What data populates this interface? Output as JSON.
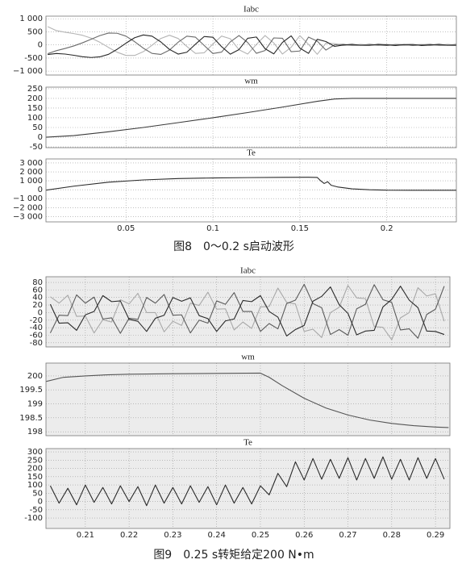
{
  "chart_data": [
    {
      "type": "line",
      "title": "Iabc",
      "background": "#ffffff",
      "grid": true,
      "xlim": [
        0.004,
        0.24
      ],
      "ylim": [
        -1150,
        1100
      ],
      "yticks": [
        {
          "value": 1000,
          "label": "1 000"
        },
        500,
        0,
        -500,
        {
          "value": -1000,
          "label": "−1 000"
        }
      ],
      "x": [
        0.005,
        0.01,
        0.015,
        0.02,
        0.025,
        0.03,
        0.035,
        0.04,
        0.045,
        0.05,
        0.055,
        0.06,
        0.065,
        0.07,
        0.075,
        0.08,
        0.085,
        0.09,
        0.095,
        0.1,
        0.105,
        0.11,
        0.115,
        0.12,
        0.125,
        0.13,
        0.135,
        0.14,
        0.145,
        0.15,
        0.155,
        0.16,
        0.165,
        0.17,
        0.175,
        0.18,
        0.185,
        0.19,
        0.195,
        0.2,
        0.205,
        0.21,
        0.215,
        0.22,
        0.225,
        0.23,
        0.235,
        0.24
      ],
      "series": [
        {
          "color": "#b4b4b4",
          "values": [
            700,
            547,
            485,
            434,
            369,
            260,
            101,
            -97,
            -281,
            -401,
            -401,
            -257,
            -10,
            245,
            370,
            247,
            -57,
            -325,
            -300,
            34,
            339,
            237,
            -182,
            -348,
            18,
            358,
            75,
            -348,
            -88,
            354,
            22,
            -358,
            68,
            49,
            -20,
            -8,
            25,
            -8,
            -20,
            20,
            8,
            -25,
            8,
            20,
            -20,
            -8,
            25,
            -8
          ]
        },
        {
          "color": "#6a6a6a",
          "values": [
            -333,
            -220,
            -135,
            -38,
            81,
            219,
            356,
            455,
            445,
            335,
            125,
            -125,
            -324,
            -363,
            -199,
            103,
            336,
            296,
            -22,
            -327,
            -274,
            117,
            360,
            93,
            -320,
            -213,
            268,
            253,
            -259,
            -233,
            300,
            143,
            -197,
            6,
            23,
            -17,
            -13,
            24,
            -3,
            -23,
            17,
            13,
            -24,
            3,
            23,
            -17,
            -13,
            24
          ]
        },
        {
          "color": "#262626",
          "values": [
            -367,
            -326,
            -349,
            -395,
            -450,
            -480,
            -456,
            -358,
            -163,
            67,
            276,
            382,
            334,
            118,
            -170,
            -350,
            -279,
            30,
            322,
            293,
            -66,
            -353,
            -178,
            255,
            302,
            -145,
            -342,
            96,
            346,
            -121,
            -322,
            215,
            129,
            -55,
            -3,
            24,
            -13,
            -17,
            23,
            3,
            -24,
            13,
            17,
            -23,
            -3,
            24,
            -13,
            -17
          ]
        }
      ]
    },
    {
      "type": "line",
      "title": "wm",
      "background": "#ffffff",
      "grid": true,
      "xlim": [
        0.004,
        0.24
      ],
      "ylim": [
        -54,
        258
      ],
      "yticks": [
        250,
        200,
        150,
        100,
        50,
        0,
        -50
      ],
      "x": [
        0.004,
        0.02,
        0.04,
        0.06,
        0.08,
        0.1,
        0.12,
        0.14,
        0.16,
        0.17,
        0.18,
        0.24
      ],
      "series": [
        {
          "color": "#3a3a3a",
          "values": [
            0,
            8,
            28,
            50,
            75,
            100,
            127,
            155,
            185,
            197,
            200,
            200
          ]
        }
      ]
    },
    {
      "type": "line",
      "title": "Te",
      "background": "#ffffff",
      "grid": true,
      "xlim": [
        0.004,
        0.24
      ],
      "ylim": [
        -3600,
        3450
      ],
      "yticks": [
        {
          "value": 3000,
          "label": "3 000"
        },
        {
          "value": 2000,
          "label": "2 000"
        },
        {
          "value": 1000,
          "label": "1 000"
        },
        0,
        {
          "value": -1000,
          "label": "−1 000"
        },
        {
          "value": -2000,
          "label": "−2 000"
        },
        {
          "value": -3000,
          "label": "−3 000"
        }
      ],
      "xticks": [
        0.05,
        0.1,
        0.15,
        0.2
      ],
      "x": [
        0.004,
        0.02,
        0.04,
        0.06,
        0.08,
        0.1,
        0.12,
        0.14,
        0.155,
        0.16,
        0.162,
        0.164,
        0.166,
        0.168,
        0.172,
        0.18,
        0.19,
        0.2,
        0.22,
        0.24
      ],
      "series": [
        {
          "color": "#2a2a2a",
          "values": [
            -50,
            400,
            850,
            1100,
            1250,
            1320,
            1360,
            1390,
            1400,
            1380,
            1000,
            700,
            900,
            500,
            300,
            100,
            0,
            -50,
            -60,
            -60
          ]
        }
      ]
    },
    {
      "type": "line",
      "title": "Iabc",
      "background": "#ececec",
      "grid": true,
      "xlim": [
        0.201,
        0.2933
      ],
      "ylim": [
        -91,
        95
      ],
      "yticks": [
        80,
        60,
        40,
        20,
        0,
        -20,
        -40,
        -60,
        -80
      ],
      "x": [
        0.202,
        0.204,
        0.206,
        0.208,
        0.21,
        0.212,
        0.214,
        0.216,
        0.218,
        0.22,
        0.222,
        0.224,
        0.226,
        0.228,
        0.23,
        0.232,
        0.234,
        0.236,
        0.238,
        0.24,
        0.242,
        0.244,
        0.246,
        0.248,
        0.25,
        0.252,
        0.254,
        0.256,
        0.258,
        0.26,
        0.262,
        0.264,
        0.266,
        0.268,
        0.27,
        0.272,
        0.274,
        0.276,
        0.278,
        0.28,
        0.282,
        0.284,
        0.286,
        0.288,
        0.29,
        0.292
      ],
      "series": [
        {
          "color": "#a8a8a8",
          "values": [
            42,
            25,
            46,
            -10,
            -9,
            -54,
            -19,
            -25,
            34,
            23,
            51,
            0,
            0,
            -51,
            -23,
            -34,
            25,
            19,
            54,
            9,
            10,
            -46,
            -25,
            -42,
            15,
            16,
            65,
            27,
            23,
            -50,
            -44,
            -66,
            0,
            14,
            72,
            39,
            37,
            -37,
            -39,
            -72,
            -14,
            0,
            66,
            44,
            50,
            -23
          ]
        },
        {
          "color": "#5a5a5a",
          "values": [
            -54,
            -7,
            -8,
            47,
            25,
            41,
            -17,
            -14,
            -55,
            -15,
            -18,
            40,
            25,
            48,
            -7,
            -6,
            -54,
            -20,
            -28,
            31,
            22,
            53,
            3,
            3,
            -50,
            -29,
            -43,
            24,
            33,
            75,
            24,
            13,
            -58,
            -45,
            -60,
            10,
            22,
            74,
            34,
            27,
            -46,
            -43,
            -68,
            -5,
            9,
            70
          ]
        },
        {
          "color": "#2a2a2a",
          "values": [
            22,
            -28,
            -27,
            -47,
            -6,
            3,
            45,
            29,
            31,
            -18,
            -23,
            -50,
            -15,
            -7,
            40,
            30,
            39,
            -8,
            -16,
            -50,
            -22,
            -17,
            32,
            29,
            45,
            3,
            -12,
            -62,
            -45,
            -34,
            30,
            43,
            68,
            21,
            -2,
            -59,
            -49,
            -47,
            15,
            35,
            70,
            33,
            13,
            -49,
            -50,
            -58
          ]
        }
      ]
    },
    {
      "type": "line",
      "title": "wm",
      "background": "#ececec",
      "grid": true,
      "xlim": [
        0.201,
        0.2933
      ],
      "ylim": [
        197.86,
        200.46
      ],
      "yticks": [
        200,
        199.5,
        199,
        198.5,
        198
      ],
      "x": [
        0.201,
        0.205,
        0.21,
        0.215,
        0.22,
        0.23,
        0.24,
        0.25,
        0.252,
        0.255,
        0.26,
        0.265,
        0.27,
        0.275,
        0.28,
        0.285,
        0.29,
        0.293
      ],
      "series": [
        {
          "color": "#555555",
          "values": [
            199.8,
            199.95,
            200,
            200.04,
            200.06,
            200.08,
            200.09,
            200.1,
            199.95,
            199.65,
            199.2,
            198.85,
            198.6,
            198.42,
            198.3,
            198.22,
            198.17,
            198.15
          ]
        }
      ]
    },
    {
      "type": "line",
      "title": "Te",
      "background": "#ececec",
      "grid": true,
      "xlim": [
        0.201,
        0.2933
      ],
      "ylim": [
        -163,
        320
      ],
      "yticks": [
        300,
        250,
        200,
        150,
        100,
        50,
        0,
        -50,
        -100
      ],
      "xticks": [
        0.21,
        0.22,
        0.23,
        0.24,
        0.25,
        0.26,
        0.27,
        0.28,
        0.29
      ],
      "x": [
        0.202,
        0.204,
        0.206,
        0.208,
        0.21,
        0.212,
        0.214,
        0.216,
        0.218,
        0.22,
        0.222,
        0.224,
        0.226,
        0.228,
        0.23,
        0.232,
        0.234,
        0.236,
        0.238,
        0.24,
        0.242,
        0.244,
        0.246,
        0.248,
        0.25,
        0.252,
        0.254,
        0.256,
        0.258,
        0.26,
        0.262,
        0.264,
        0.266,
        0.268,
        0.27,
        0.272,
        0.274,
        0.276,
        0.278,
        0.28,
        0.282,
        0.284,
        0.286,
        0.288,
        0.29,
        0.292
      ],
      "series": [
        {
          "color": "#2a2a2a",
          "values": [
            95,
            -10,
            80,
            -20,
            100,
            -5,
            85,
            -15,
            95,
            0,
            90,
            -25,
            100,
            -10,
            85,
            -15,
            95,
            -5,
            90,
            -20,
            100,
            -10,
            85,
            -15,
            95,
            40,
            170,
            90,
            240,
            130,
            260,
            135,
            255,
            140,
            265,
            130,
            260,
            140,
            270,
            135,
            255,
            130,
            265,
            140,
            260,
            135
          ]
        }
      ]
    }
  ],
  "captions": [
    "图8　0～0.2 s启动波形",
    "图9　0.25 s转矩给定200 N•m"
  ]
}
